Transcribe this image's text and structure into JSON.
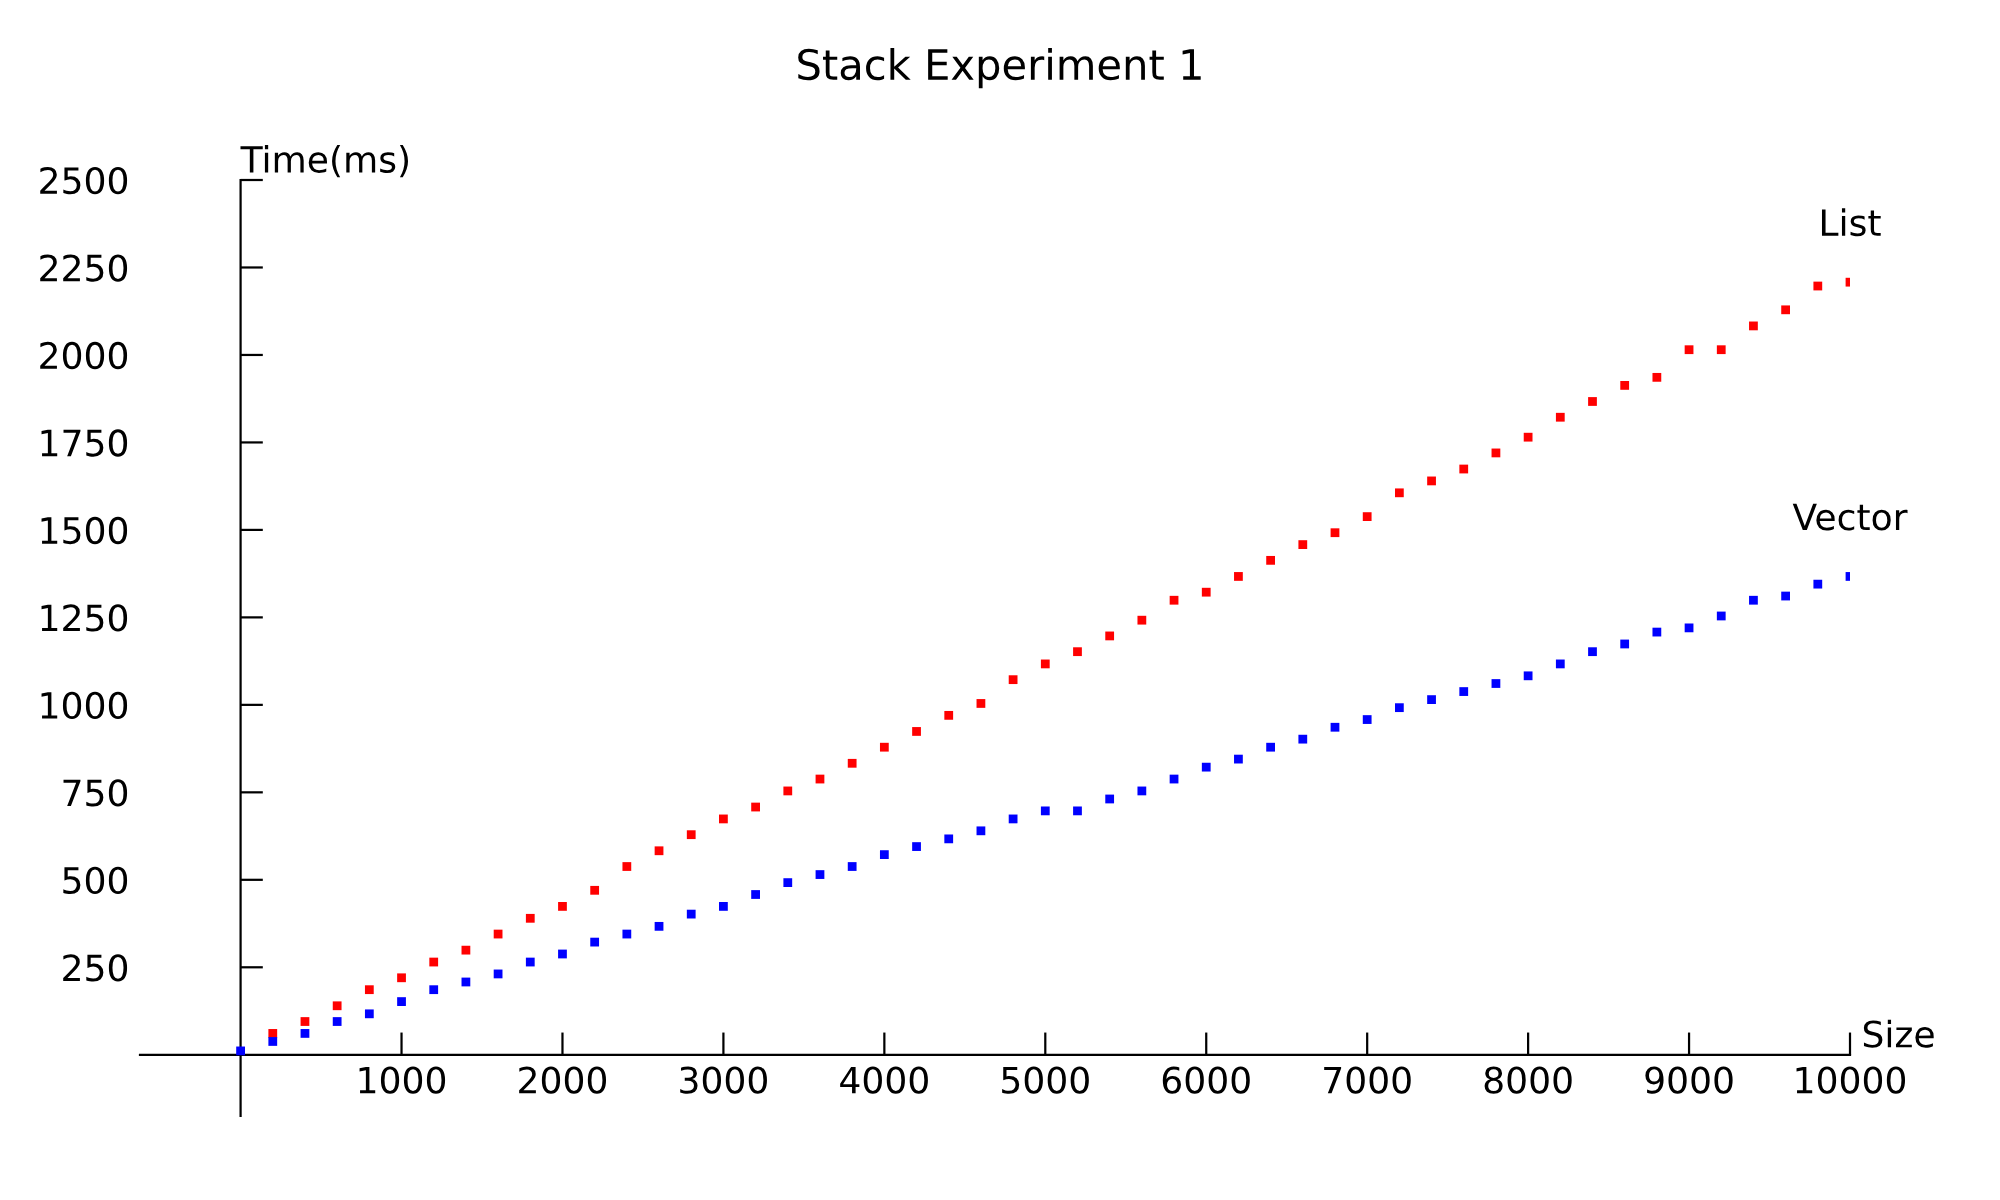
{
  "chart_data": {
    "type": "scatter",
    "title": "Stack Experiment 1",
    "xlabel": "Size",
    "ylabel": "Time(ms)",
    "xlim": [
      -625,
      10000
    ],
    "ylim": [
      -175,
      2500
    ],
    "xticks": [
      1000,
      2000,
      3000,
      4000,
      5000,
      6000,
      7000,
      8000,
      9000,
      10000
    ],
    "yticks": [
      250,
      500,
      750,
      1000,
      1250,
      1500,
      1750,
      2000,
      2250,
      2500
    ],
    "grid": false,
    "legend": false,
    "marker": "square",
    "series": [
      {
        "name": "List",
        "color": "#ff0000",
        "x": [
          200,
          400,
          600,
          800,
          1000,
          1200,
          1400,
          1600,
          1800,
          2000,
          2200,
          2400,
          2600,
          2800,
          3000,
          3200,
          3400,
          3600,
          3800,
          4000,
          4200,
          4400,
          4600,
          4800,
          5000,
          5200,
          5400,
          5600,
          5800,
          6000,
          6200,
          6400,
          6600,
          6800,
          7000,
          7200,
          7400,
          7600,
          7800,
          8000,
          8200,
          8400,
          8600,
          8800,
          9000,
          9200,
          9400,
          9600,
          9800,
          10000
        ],
        "values": [
          61,
          95,
          140,
          186,
          220,
          265,
          299,
          345,
          390,
          424,
          470,
          538,
          583,
          629,
          674,
          708,
          754,
          788,
          833,
          879,
          924,
          970,
          1004,
          1072,
          1117,
          1152,
          1197,
          1242,
          1299,
          1322,
          1367,
          1413,
          1458,
          1492,
          1538,
          1606,
          1640,
          1674,
          1720,
          1765,
          1822,
          1867,
          1913,
          1936,
          2015,
          2015,
          2083,
          2129,
          2197,
          2208
        ]
      },
      {
        "name": "Vector",
        "color": "#0000ff",
        "x": [
          0,
          200,
          400,
          600,
          800,
          1000,
          1200,
          1400,
          1600,
          1800,
          2000,
          2200,
          2400,
          2600,
          2800,
          3000,
          3200,
          3400,
          3600,
          3800,
          4000,
          4200,
          4400,
          4600,
          4800,
          5000,
          5200,
          5400,
          5600,
          5800,
          6000,
          6200,
          6400,
          6600,
          6800,
          7000,
          7200,
          7400,
          7600,
          7800,
          8000,
          8200,
          8400,
          8600,
          8800,
          9000,
          9200,
          9400,
          9600,
          9800,
          10000
        ],
        "values": [
          11,
          38,
          61,
          95,
          117,
          152,
          186,
          208,
          231,
          265,
          288,
          322,
          345,
          367,
          402,
          424,
          458,
          492,
          515,
          538,
          572,
          595,
          617,
          640,
          674,
          697,
          697,
          731,
          754,
          788,
          822,
          845,
          879,
          902,
          936,
          958,
          992,
          1015,
          1038,
          1061,
          1083,
          1117,
          1152,
          1174,
          1208,
          1220,
          1254,
          1299,
          1311,
          1345,
          1367
        ]
      }
    ]
  }
}
